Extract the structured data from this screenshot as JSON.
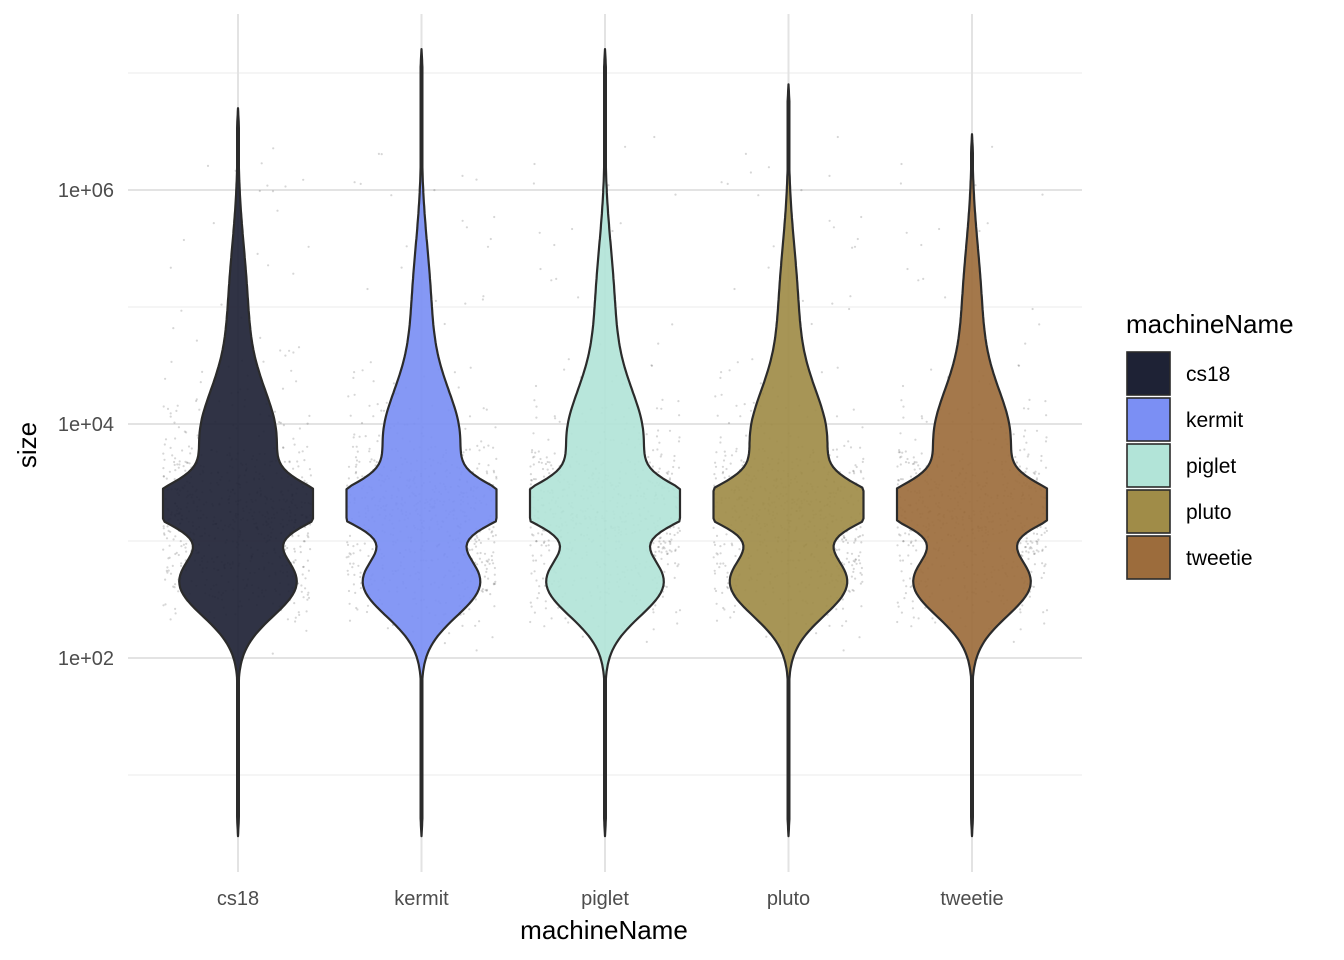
{
  "chart_data": {
    "type": "violin",
    "title": "",
    "xlabel": "machineName",
    "ylabel": "size",
    "y_scale": "log10",
    "ylim": [
      1,
      40000000
    ],
    "y_ticks": [
      {
        "value": 100,
        "label": "1e+02"
      },
      {
        "value": 10000,
        "label": "1e+04"
      },
      {
        "value": 1000000,
        "label": "1e+06"
      }
    ],
    "y_minor_ticks": [
      10,
      1000,
      100000,
      10000000
    ],
    "categories": [
      "cs18",
      "kermit",
      "piglet",
      "pluto",
      "tweetie"
    ],
    "grid": true,
    "jitter_points": true,
    "legend": {
      "title": "machineName",
      "position": "right",
      "entries": [
        "cs18",
        "kermit",
        "piglet",
        "pluto",
        "tweetie"
      ]
    },
    "series": [
      {
        "name": "cs18",
        "color": "#1e2235",
        "min": 3,
        "max": 5000000,
        "mode": 2000,
        "secondary_peak": 500
      },
      {
        "name": "kermit",
        "color": "#7b8ff4",
        "min": 3,
        "max": 16000000,
        "mode": 2000,
        "secondary_peak": 500
      },
      {
        "name": "piglet",
        "color": "#b2e4d8",
        "min": 3,
        "max": 16000000,
        "mode": 2000,
        "secondary_peak": 500
      },
      {
        "name": "pluto",
        "color": "#a08c48",
        "min": 3,
        "max": 8000000,
        "mode": 2000,
        "secondary_peak": 500
      },
      {
        "name": "tweetie",
        "color": "#9c6c3c",
        "min": 3,
        "max": 3000000,
        "mode": 2000,
        "secondary_peak": 500
      }
    ]
  }
}
